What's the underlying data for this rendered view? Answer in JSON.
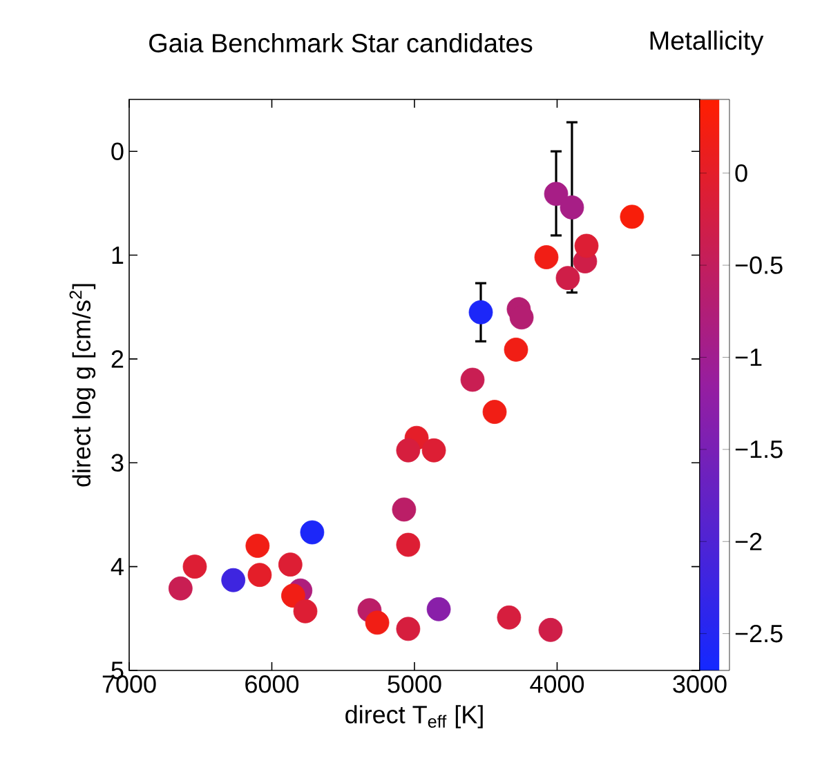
{
  "chart_data": {
    "type": "scatter",
    "title": "Gaia Benchmark Star candidates",
    "xlabel": "direct T$_{eff}$ [K]",
    "ylabel": "direct log g [cm/s$^{2}$]",
    "clabel": "Metallicity",
    "xlim": [
      7000,
      3000
    ],
    "xticks": [
      7000,
      6000,
      5000,
      4000,
      3000
    ],
    "ylim": [
      5,
      -0.5
    ],
    "yticks": [
      0,
      1,
      2,
      3,
      4,
      5
    ],
    "clim": [
      -2.7,
      0.4
    ],
    "cticks": [
      0,
      {
        "value": -0.5,
        "label": "−0.5"
      },
      {
        "value": -1,
        "label": "−1"
      },
      {
        "value": -1.5,
        "label": "−1.5"
      },
      {
        "value": -2,
        "label": "−2"
      },
      {
        "value": -2.5,
        "label": "−2.5"
      }
    ],
    "marker": "circle",
    "x": [
      6640,
      6540,
      6270,
      6100,
      6085,
      5870,
      5800,
      5850,
      5765,
      5717,
      5315,
      5261,
      5044,
      5073,
      5044,
      4985,
      5044,
      4864,
      4830,
      4593,
      4438,
      4535,
      4288,
      4269,
      4249,
      4337,
      4046,
      4075,
      4007,
      3896,
      3925,
      3804,
      3794,
      3475
    ],
    "values": [
      4.21,
      4.0,
      4.13,
      3.8,
      4.08,
      3.98,
      4.23,
      4.28,
      4.43,
      3.67,
      4.42,
      4.54,
      4.6,
      3.45,
      3.79,
      2.76,
      2.88,
      2.88,
      4.41,
      2.2,
      2.51,
      1.55,
      1.91,
      1.52,
      1.6,
      4.49,
      4.61,
      1.02,
      0.41,
      0.54,
      1.22,
      1.06,
      0.91,
      0.63
    ],
    "cvalues": [
      -0.4,
      -0.1,
      -2.2,
      0.2,
      0.0,
      -0.1,
      -0.8,
      0.2,
      -0.1,
      -2.6,
      -0.6,
      0.2,
      -0.2,
      -0.6,
      -0.1,
      0.0,
      -0.2,
      -0.1,
      -1.3,
      -0.4,
      0.2,
      -2.6,
      0.2,
      -0.7,
      -0.7,
      -0.2,
      -0.3,
      0.2,
      -0.9,
      -0.9,
      -0.3,
      -0.3,
      -0.1,
      0.3
    ],
    "errors": [
      null,
      null,
      null,
      null,
      null,
      null,
      null,
      null,
      null,
      null,
      null,
      null,
      null,
      null,
      null,
      null,
      null,
      null,
      null,
      null,
      null,
      [
        1.27,
        1.83
      ],
      null,
      null,
      null,
      null,
      null,
      null,
      [
        0.0,
        0.81
      ],
      [
        -0.28,
        1.36
      ],
      null,
      null,
      null,
      null
    ]
  }
}
